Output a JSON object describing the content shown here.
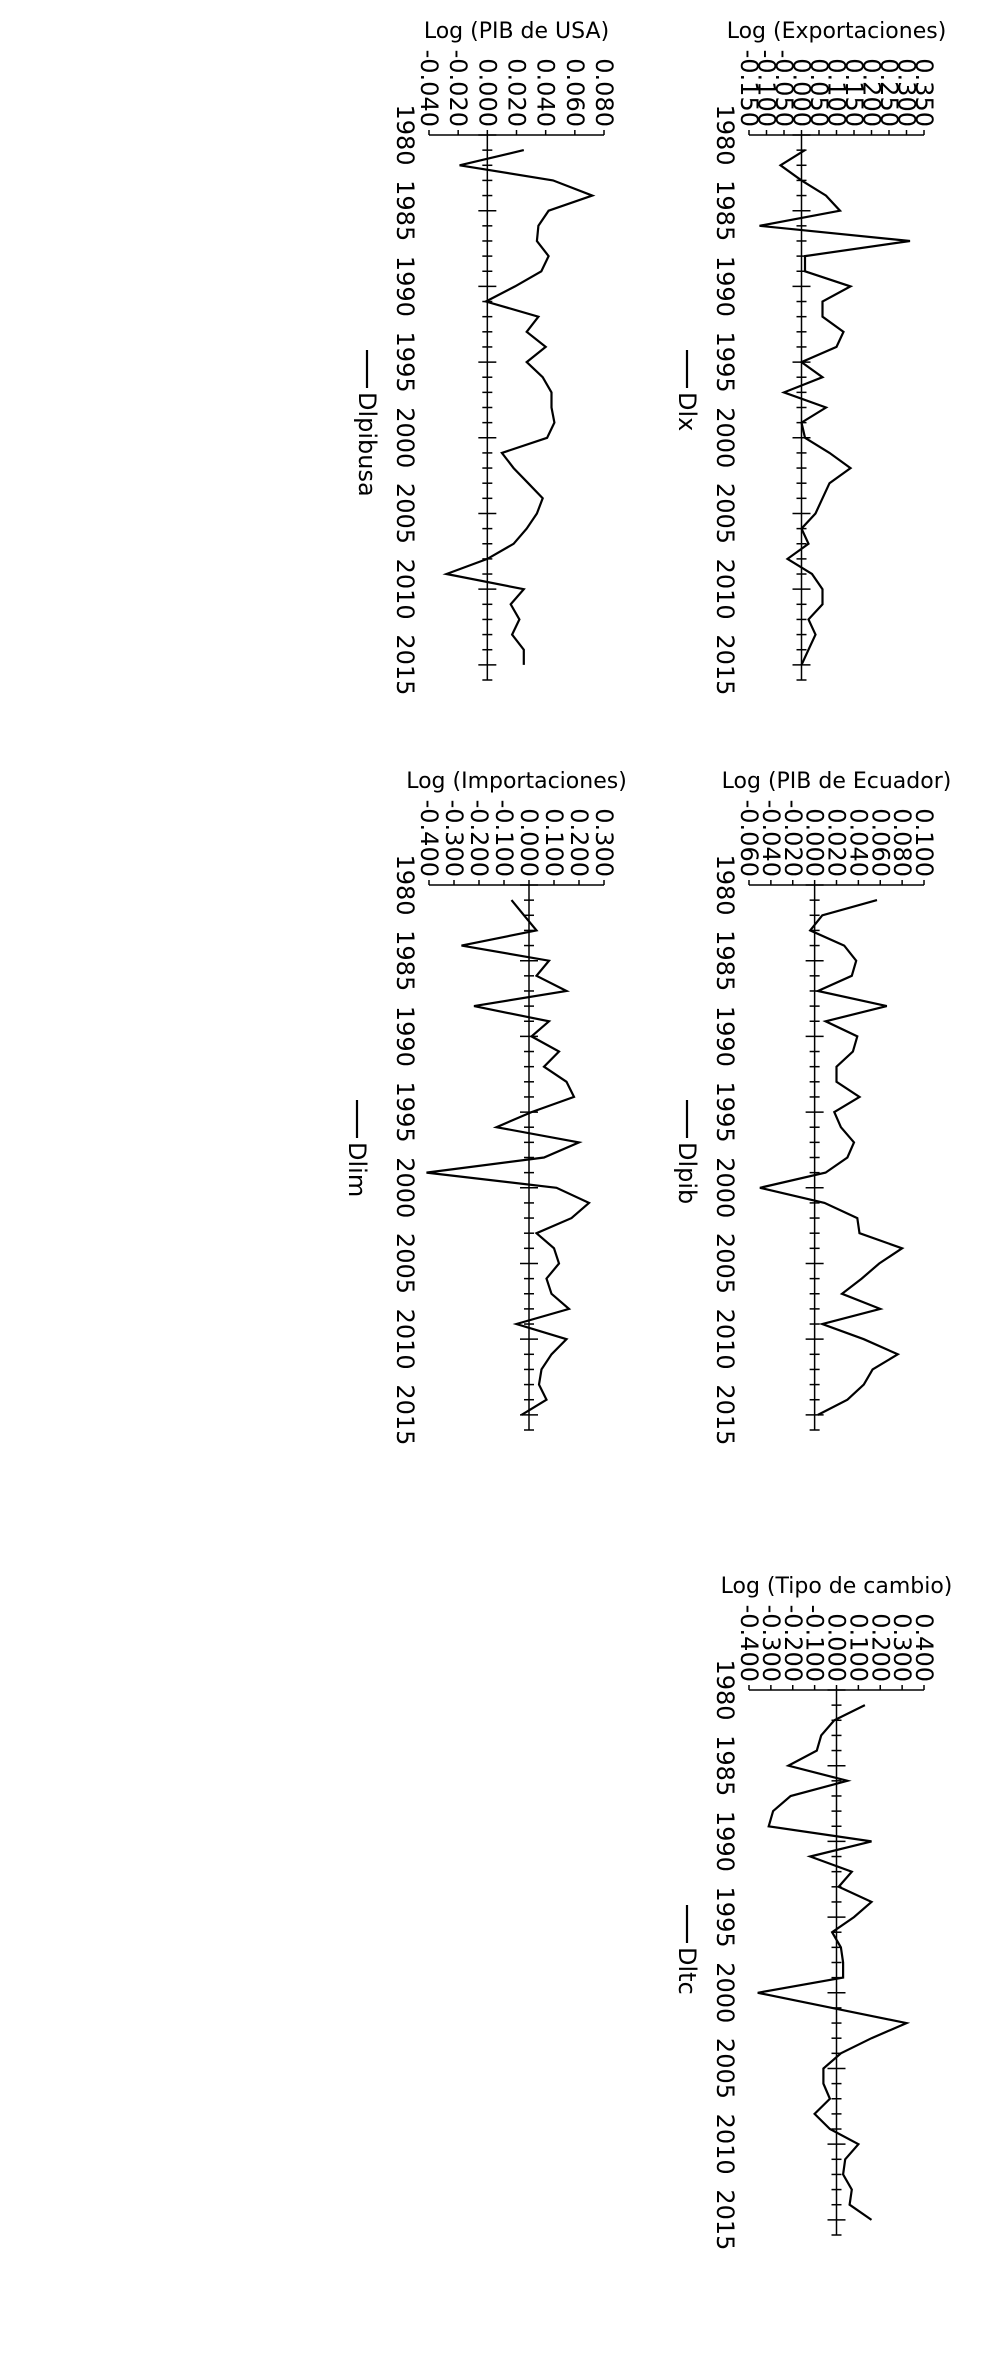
{
  "chart_data": [
    {
      "type": "line",
      "ylabel": "Log (PIB de Ecuador)",
      "ylim": [
        -0.06,
        0.1
      ],
      "yticks": [
        -0.06,
        -0.04,
        -0.02,
        0.0,
        0.02,
        0.04,
        0.06,
        0.08,
        0.1
      ],
      "ytick_labels": [
        "-0.060",
        "-0.040",
        "-0.020",
        "0.000",
        "0.020",
        "0.040",
        "0.060",
        "0.080",
        "0.100"
      ],
      "xlim": [
        1980,
        2016
      ],
      "xticks": [
        1980,
        1985,
        1990,
        1995,
        2000,
        2005,
        2010,
        2015
      ],
      "series": [
        {
          "name": "Dlpib",
          "x": [
            1981,
            1982,
            1983,
            1984,
            1985,
            1986,
            1987,
            1988,
            1989,
            1990,
            1991,
            1992,
            1993,
            1994,
            1995,
            1996,
            1997,
            1998,
            1999,
            2000,
            2001,
            2002,
            2003,
            2004,
            2005,
            2006,
            2007,
            2008,
            2009,
            2010,
            2011,
            2012,
            2013,
            2014,
            2015
          ],
          "values": [
            0.057,
            0.007,
            -0.004,
            0.027,
            0.038,
            0.034,
            0.003,
            0.066,
            0.01,
            0.039,
            0.035,
            0.02,
            0.02,
            0.041,
            0.018,
            0.024,
            0.036,
            0.03,
            0.01,
            -0.05,
            0.009,
            0.039,
            0.041,
            0.08,
            0.059,
            0.043,
            0.025,
            0.06,
            0.007,
            0.045,
            0.076,
            0.053,
            0.045,
            0.03,
            0.003
          ]
        }
      ]
    },
    {
      "type": "line",
      "ylabel": "Log (Importaciones)",
      "ylim": [
        -0.4,
        0.3
      ],
      "yticks": [
        -0.4,
        -0.3,
        -0.2,
        -0.1,
        0.0,
        0.1,
        0.2,
        0.3
      ],
      "ytick_labels": [
        "-0.400",
        "-0.300",
        "-0.200",
        "-0.100",
        "0.000",
        "0.100",
        "0.200",
        "0.300"
      ],
      "xlim": [
        1980,
        2016
      ],
      "xticks": [
        1980,
        1985,
        1990,
        1995,
        2000,
        2005,
        2010,
        2015
      ],
      "series": [
        {
          "name": "Dlim",
          "x": [
            1981,
            1982,
            1983,
            1984,
            1985,
            1986,
            1987,
            1988,
            1989,
            1990,
            1991,
            1992,
            1993,
            1994,
            1995,
            1996,
            1997,
            1998,
            1999,
            2000,
            2001,
            2002,
            2003,
            2004,
            2005,
            2006,
            2007,
            2008,
            2009,
            2010,
            2011,
            2012,
            2013,
            2014,
            2015
          ],
          "values": [
            -0.07,
            -0.02,
            0.03,
            -0.27,
            0.08,
            0.03,
            0.15,
            -0.22,
            0.08,
            0.01,
            0.12,
            0.06,
            0.15,
            0.18,
            0.01,
            -0.13,
            0.2,
            0.06,
            -0.41,
            0.11,
            0.24,
            0.17,
            0.03,
            0.1,
            0.12,
            0.07,
            0.09,
            0.16,
            -0.05,
            0.15,
            0.09,
            0.05,
            0.04,
            0.07,
            -0.03
          ]
        }
      ]
    },
    {
      "type": "line",
      "ylabel": "Log (Tipo de cambio)",
      "ylim": [
        -0.4,
        0.4
      ],
      "yticks": [
        -0.4,
        -0.3,
        -0.2,
        -0.1,
        0.0,
        0.1,
        0.2,
        0.3,
        0.4
      ],
      "ytick_labels": [
        "-0.400",
        "-0.300",
        "-0.200",
        "-0.100",
        "0.000",
        "0.100",
        "0.200",
        "0.300",
        "0.400"
      ],
      "xlim": [
        1980,
        2016
      ],
      "xticks": [
        1980,
        1985,
        1990,
        1995,
        2000,
        2005,
        2010,
        2015
      ],
      "series": [
        {
          "name": "Dltc",
          "x": [
            1981,
            1982,
            1983,
            1984,
            1985,
            1986,
            1987,
            1988,
            1989,
            1990,
            1991,
            1992,
            1993,
            1994,
            1995,
            1996,
            1997,
            1998,
            1999,
            2000,
            2001,
            2002,
            2003,
            2004,
            2005,
            2006,
            2007,
            2008,
            2009,
            2010,
            2011,
            2012,
            2013,
            2014,
            2015
          ],
          "values": [
            0.13,
            -0.01,
            -0.07,
            -0.09,
            -0.22,
            0.05,
            -0.21,
            -0.29,
            -0.31,
            0.16,
            -0.12,
            0.07,
            0.01,
            0.16,
            0.08,
            -0.02,
            0.02,
            0.03,
            0.03,
            -0.36,
            -0.02,
            0.32,
            0.16,
            0.02,
            -0.06,
            -0.06,
            -0.03,
            -0.1,
            -0.03,
            0.1,
            0.04,
            0.03,
            0.07,
            0.06,
            0.16
          ]
        }
      ]
    },
    {
      "type": "line",
      "ylabel": "Log  (Exportaciones)",
      "ylim": [
        -0.15,
        0.35
      ],
      "yticks": [
        -0.15,
        -0.1,
        -0.05,
        0.0,
        0.05,
        0.1,
        0.15,
        0.2,
        0.25,
        0.3,
        0.35
      ],
      "ytick_labels": [
        "-0.150",
        "-0.100",
        "-0.050",
        "0.000",
        "0.050",
        "0.100",
        "0.150",
        "0.200",
        "0.250",
        "0.300",
        "0.350"
      ],
      "xlim": [
        1980,
        2016
      ],
      "xticks": [
        1980,
        1985,
        1990,
        1995,
        2000,
        2005,
        2010,
        2015
      ],
      "series": [
        {
          "name": "Dlx",
          "x": [
            1981,
            1982,
            1983,
            1984,
            1985,
            1986,
            1987,
            1988,
            1989,
            1990,
            1991,
            1992,
            1993,
            1994,
            1995,
            1996,
            1997,
            1998,
            1999,
            2000,
            2001,
            2002,
            2003,
            2004,
            2005,
            2006,
            2007,
            2008,
            2009,
            2010,
            2011,
            2012,
            2013,
            2014,
            2015
          ],
          "values": [
            0.01,
            -0.06,
            0.0,
            0.07,
            0.11,
            -0.12,
            0.31,
            0.01,
            0.01,
            0.14,
            0.06,
            0.06,
            0.12,
            0.1,
            0.0,
            0.06,
            -0.05,
            0.07,
            0.0,
            0.01,
            0.08,
            0.14,
            0.08,
            0.06,
            0.04,
            0.0,
            0.02,
            -0.04,
            0.03,
            0.06,
            0.06,
            0.02,
            0.04,
            0.02,
            0.0
          ]
        }
      ]
    },
    {
      "type": "line",
      "ylabel": "Log  (PIB de USA)",
      "ylim": [
        -0.04,
        0.08
      ],
      "yticks": [
        -0.04,
        -0.02,
        0.0,
        0.02,
        0.04,
        0.06,
        0.08
      ],
      "ytick_labels": [
        "-0.040",
        "-0.020",
        "0.000",
        "0.020",
        "0.040",
        "0.060",
        "0.080"
      ],
      "xlim": [
        1980,
        2016
      ],
      "xticks": [
        1980,
        1985,
        1990,
        1995,
        2000,
        2005,
        2010,
        2015
      ],
      "series": [
        {
          "name": "Dlpibusa",
          "x": [
            1981,
            1982,
            1983,
            1984,
            1985,
            1986,
            1987,
            1988,
            1989,
            1990,
            1991,
            1992,
            1993,
            1994,
            1995,
            1996,
            1997,
            1998,
            1999,
            2000,
            2001,
            2002,
            2003,
            2004,
            2005,
            2006,
            2007,
            2008,
            2009,
            2010,
            2011,
            2012,
            2013,
            2014,
            2015
          ],
          "values": [
            0.025,
            -0.019,
            0.045,
            0.072,
            0.042,
            0.035,
            0.034,
            0.042,
            0.037,
            0.019,
            -0.001,
            0.035,
            0.027,
            0.04,
            0.027,
            0.038,
            0.044,
            0.044,
            0.046,
            0.041,
            0.01,
            0.018,
            0.028,
            0.038,
            0.034,
            0.027,
            0.018,
            0.0,
            -0.028,
            0.025,
            0.016,
            0.022,
            0.017,
            0.025,
            0.025
          ]
        }
      ]
    }
  ]
}
